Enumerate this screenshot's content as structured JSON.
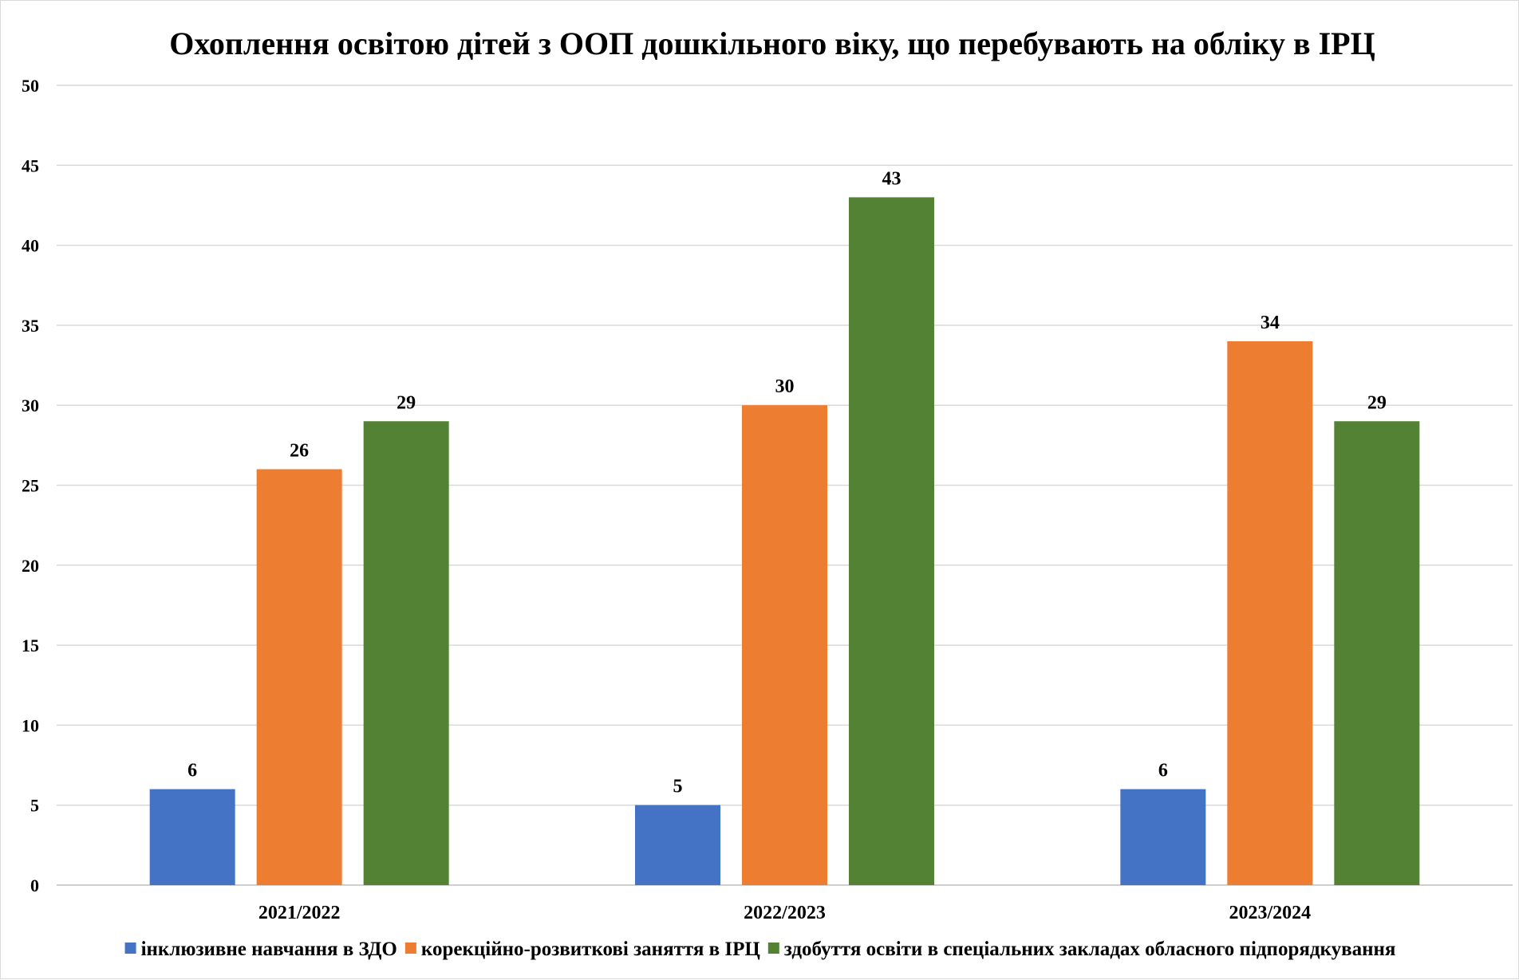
{
  "chart_data": {
    "type": "bar",
    "title": "Охоплення освітою дітей з ООП дошкільного віку, що перебувають на обліку в ІРЦ",
    "xlabel": "",
    "ylabel": "",
    "ylim": [
      0,
      50
    ],
    "yticks": [
      0,
      5,
      10,
      15,
      20,
      25,
      30,
      35,
      40,
      45,
      50
    ],
    "grid": true,
    "legend_position": "bottom",
    "categories": [
      "2021/2022",
      "2022/2023",
      "2023/2024"
    ],
    "series": [
      {
        "name": "інклюзивне навчання в ЗДО",
        "color": "#4472C4",
        "values": [
          6,
          5,
          6
        ]
      },
      {
        "name": "корекційно-розвиткові заняття в ІРЦ",
        "color": "#ED7D31",
        "values": [
          26,
          30,
          34
        ]
      },
      {
        "name": "здобуття освіти в спеціальних закладах обласного підпорядкування",
        "color": "#548235",
        "values": [
          29,
          43,
          29
        ]
      }
    ]
  }
}
